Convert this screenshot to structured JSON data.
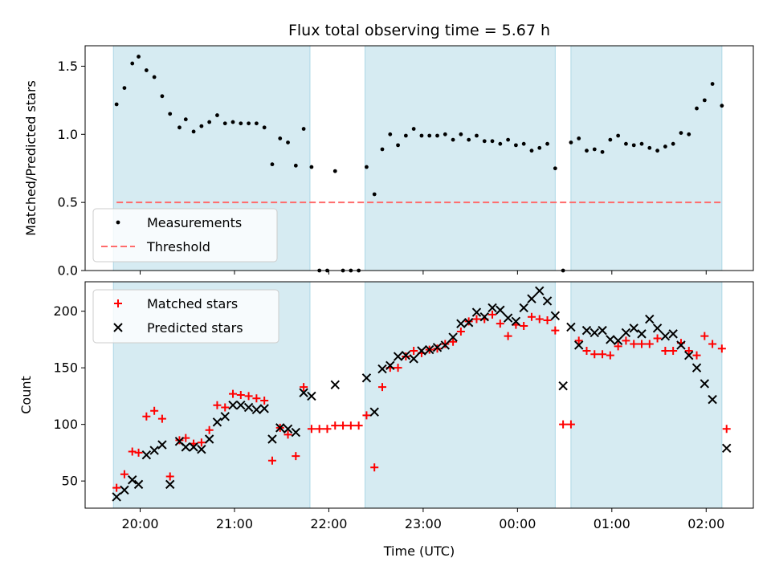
{
  "title": "Flux total observing time = 5.67 h",
  "colors": {
    "shade": "#add8e6",
    "measurement": "#000000",
    "threshold": "#ff6b6b",
    "matched": "#ff0000",
    "predicted": "#000000"
  },
  "shaded_intervals": [
    [
      "19:43",
      "21:48"
    ],
    [
      "22:23",
      "00:24"
    ],
    [
      "00:34",
      "02:10"
    ]
  ],
  "x_axis": {
    "label": "Time (UTC)",
    "ticks": [
      "20:00",
      "21:00",
      "22:00",
      "23:00",
      "00:00",
      "01:00",
      "02:00"
    ],
    "range": [
      "19:25",
      "02:30"
    ]
  },
  "chart_data": [
    {
      "type": "scatter",
      "panel": "top",
      "ylabel": "Matched/Predicted stars",
      "ylim": [
        0,
        1.65
      ],
      "yticks": [
        "0.0",
        "0.5",
        "1.0",
        "1.5"
      ],
      "legend": {
        "placement": "lower-left",
        "entries": [
          "Measurements",
          "Threshold"
        ]
      },
      "threshold": {
        "name": "Threshold",
        "value": 0.5,
        "x": [
          "19:45",
          "02:10"
        ]
      },
      "series": [
        {
          "name": "Measurements",
          "points": [
            [
              "19:45",
              1.22
            ],
            [
              "19:50",
              1.34
            ],
            [
              "19:55",
              1.52
            ],
            [
              "19:59",
              1.57
            ],
            [
              "20:04",
              1.47
            ],
            [
              "20:09",
              1.42
            ],
            [
              "20:14",
              1.28
            ],
            [
              "20:19",
              1.15
            ],
            [
              "20:25",
              1.05
            ],
            [
              "20:29",
              1.11
            ],
            [
              "20:34",
              1.02
            ],
            [
              "20:39",
              1.06
            ],
            [
              "20:44",
              1.09
            ],
            [
              "20:49",
              1.14
            ],
            [
              "20:54",
              1.08
            ],
            [
              "20:59",
              1.09
            ],
            [
              "21:04",
              1.08
            ],
            [
              "21:09",
              1.08
            ],
            [
              "21:14",
              1.08
            ],
            [
              "21:19",
              1.05
            ],
            [
              "21:24",
              0.78
            ],
            [
              "21:29",
              0.97
            ],
            [
              "21:34",
              0.94
            ],
            [
              "21:39",
              0.77
            ],
            [
              "21:44",
              1.04
            ],
            [
              "21:49",
              0.76
            ],
            [
              "21:54",
              0.0
            ],
            [
              "21:59",
              0.0
            ],
            [
              "22:04",
              0.73
            ],
            [
              "22:09",
              0.0
            ],
            [
              "22:14",
              0.0
            ],
            [
              "22:19",
              0.0
            ],
            [
              "22:24",
              0.76
            ],
            [
              "22:29",
              0.56
            ],
            [
              "22:34",
              0.89
            ],
            [
              "22:39",
              1.0
            ],
            [
              "22:44",
              0.92
            ],
            [
              "22:49",
              0.99
            ],
            [
              "22:54",
              1.04
            ],
            [
              "22:59",
              0.99
            ],
            [
              "23:04",
              0.99
            ],
            [
              "23:09",
              0.99
            ],
            [
              "23:14",
              1.0
            ],
            [
              "23:19",
              0.96
            ],
            [
              "23:24",
              1.0
            ],
            [
              "23:29",
              0.96
            ],
            [
              "23:34",
              0.99
            ],
            [
              "23:39",
              0.95
            ],
            [
              "23:44",
              0.95
            ],
            [
              "23:49",
              0.93
            ],
            [
              "23:54",
              0.96
            ],
            [
              "23:59",
              0.92
            ],
            [
              "00:04",
              0.93
            ],
            [
              "00:09",
              0.88
            ],
            [
              "00:14",
              0.9
            ],
            [
              "00:19",
              0.93
            ],
            [
              "00:24",
              0.75
            ],
            [
              "00:29",
              0.0
            ],
            [
              "00:34",
              0.94
            ],
            [
              "00:39",
              0.97
            ],
            [
              "00:44",
              0.88
            ],
            [
              "00:49",
              0.89
            ],
            [
              "00:54",
              0.87
            ],
            [
              "00:59",
              0.96
            ],
            [
              "01:04",
              0.99
            ],
            [
              "01:09",
              0.93
            ],
            [
              "01:14",
              0.92
            ],
            [
              "01:19",
              0.93
            ],
            [
              "01:24",
              0.9
            ],
            [
              "01:29",
              0.88
            ],
            [
              "01:34",
              0.91
            ],
            [
              "01:39",
              0.93
            ],
            [
              "01:44",
              1.01
            ],
            [
              "01:49",
              1.0
            ],
            [
              "01:54",
              1.19
            ],
            [
              "01:59",
              1.25
            ],
            [
              "02:04",
              1.37
            ],
            [
              "02:10",
              1.21
            ]
          ]
        }
      ]
    },
    {
      "type": "scatter",
      "panel": "bottom",
      "ylabel": "Count",
      "ylim": [
        26,
        226
      ],
      "yticks": [
        "50",
        "100",
        "150",
        "200"
      ],
      "legend": {
        "placement": "top-left",
        "entries": [
          "Matched stars",
          "Predicted stars"
        ]
      },
      "series": [
        {
          "name": "Matched stars",
          "marker": "plus",
          "points": [
            [
              "19:45",
              44
            ],
            [
              "19:50",
              56
            ],
            [
              "19:55",
              76
            ],
            [
              "19:59",
              75
            ],
            [
              "20:04",
              107
            ],
            [
              "20:09",
              112
            ],
            [
              "20:14",
              105
            ],
            [
              "20:19",
              54
            ],
            [
              "20:25",
              86
            ],
            [
              "20:29",
              88
            ],
            [
              "20:34",
              83
            ],
            [
              "20:39",
              84
            ],
            [
              "20:44",
              95
            ],
            [
              "20:49",
              117
            ],
            [
              "20:54",
              115
            ],
            [
              "20:59",
              127
            ],
            [
              "21:04",
              126
            ],
            [
              "21:09",
              125
            ],
            [
              "21:14",
              123
            ],
            [
              "21:19",
              121
            ],
            [
              "21:24",
              68
            ],
            [
              "21:29",
              97
            ],
            [
              "21:34",
              91
            ],
            [
              "21:39",
              72
            ],
            [
              "21:44",
              133
            ],
            [
              "21:49",
              96
            ],
            [
              "21:54",
              96
            ],
            [
              "21:59",
              96
            ],
            [
              "22:04",
              99
            ],
            [
              "22:09",
              99
            ],
            [
              "22:14",
              99
            ],
            [
              "22:19",
              99
            ],
            [
              "22:24",
              108
            ],
            [
              "22:29",
              62
            ],
            [
              "22:34",
              133
            ],
            [
              "22:39",
              150
            ],
            [
              "22:44",
              150
            ],
            [
              "22:49",
              160
            ],
            [
              "22:54",
              165
            ],
            [
              "22:59",
              163
            ],
            [
              "23:04",
              166
            ],
            [
              "23:09",
              167
            ],
            [
              "23:14",
              171
            ],
            [
              "23:19",
              173
            ],
            [
              "23:24",
              182
            ],
            [
              "23:29",
              191
            ],
            [
              "23:34",
              193
            ],
            [
              "23:39",
              193
            ],
            [
              "23:44",
              197
            ],
            [
              "23:49",
              189
            ],
            [
              "23:54",
              178
            ],
            [
              "23:59",
              188
            ],
            [
              "00:04",
              187
            ],
            [
              "00:09",
              195
            ],
            [
              "00:14",
              193
            ],
            [
              "00:19",
              192
            ],
            [
              "00:24",
              183
            ],
            [
              "00:29",
              100
            ],
            [
              "00:34",
              100
            ],
            [
              "00:39",
              174
            ],
            [
              "00:44",
              165
            ],
            [
              "00:49",
              162
            ],
            [
              "00:54",
              162
            ],
            [
              "00:59",
              161
            ],
            [
              "01:04",
              169
            ],
            [
              "01:09",
              174
            ],
            [
              "01:14",
              171
            ],
            [
              "01:19",
              171
            ],
            [
              "01:24",
              171
            ],
            [
              "01:29",
              176
            ],
            [
              "01:34",
              165
            ],
            [
              "01:39",
              165
            ],
            [
              "01:44",
              172
            ],
            [
              "01:49",
              165
            ],
            [
              "01:54",
              161
            ],
            [
              "01:59",
              178
            ],
            [
              "02:04",
              171
            ],
            [
              "02:10",
              167
            ],
            [
              "02:13",
              96
            ]
          ]
        },
        {
          "name": "Predicted stars",
          "marker": "x",
          "points": [
            [
              "19:45",
              36
            ],
            [
              "19:50",
              42
            ],
            [
              "19:55",
              51
            ],
            [
              "19:59",
              47
            ],
            [
              "20:04",
              73
            ],
            [
              "20:09",
              77
            ],
            [
              "20:14",
              82
            ],
            [
              "20:19",
              47
            ],
            [
              "20:25",
              85
            ],
            [
              "20:29",
              80
            ],
            [
              "20:34",
              80
            ],
            [
              "20:39",
              78
            ],
            [
              "20:44",
              87
            ],
            [
              "20:49",
              102
            ],
            [
              "20:54",
              107
            ],
            [
              "20:59",
              117
            ],
            [
              "21:04",
              117
            ],
            [
              "21:09",
              115
            ],
            [
              "21:14",
              113
            ],
            [
              "21:19",
              114
            ],
            [
              "21:24",
              87
            ],
            [
              "21:29",
              97
            ],
            [
              "21:34",
              96
            ],
            [
              "21:39",
              93
            ],
            [
              "21:44",
              128
            ],
            [
              "21:49",
              125
            ],
            [
              "22:04",
              135
            ],
            [
              "22:24",
              141
            ],
            [
              "22:29",
              111
            ],
            [
              "22:34",
              149
            ],
            [
              "22:39",
              152
            ],
            [
              "22:44",
              160
            ],
            [
              "22:49",
              161
            ],
            [
              "22:54",
              158
            ],
            [
              "22:59",
              165
            ],
            [
              "23:04",
              166
            ],
            [
              "23:09",
              168
            ],
            [
              "23:14",
              170
            ],
            [
              "23:19",
              177
            ],
            [
              "23:24",
              189
            ],
            [
              "23:29",
              190
            ],
            [
              "23:34",
              199
            ],
            [
              "23:39",
              195
            ],
            [
              "23:44",
              203
            ],
            [
              "23:49",
              201
            ],
            [
              "23:54",
              194
            ],
            [
              "23:59",
              191
            ],
            [
              "00:04",
              203
            ],
            [
              "00:09",
              211
            ],
            [
              "00:14",
              218
            ],
            [
              "00:19",
              209
            ],
            [
              "00:24",
              196
            ],
            [
              "00:29",
              134
            ],
            [
              "00:34",
              186
            ],
            [
              "00:39",
              170
            ],
            [
              "00:44",
              183
            ],
            [
              "00:49",
              181
            ],
            [
              "00:54",
              183
            ],
            [
              "00:59",
              175
            ],
            [
              "01:04",
              174
            ],
            [
              "01:09",
              181
            ],
            [
              "01:14",
              185
            ],
            [
              "01:19",
              180
            ],
            [
              "01:24",
              193
            ],
            [
              "01:29",
              185
            ],
            [
              "01:34",
              178
            ],
            [
              "01:39",
              180
            ],
            [
              "01:44",
              170
            ],
            [
              "01:49",
              161
            ],
            [
              "01:54",
              150
            ],
            [
              "01:59",
              136
            ],
            [
              "02:04",
              122
            ],
            [
              "02:13",
              79
            ]
          ]
        }
      ]
    }
  ]
}
